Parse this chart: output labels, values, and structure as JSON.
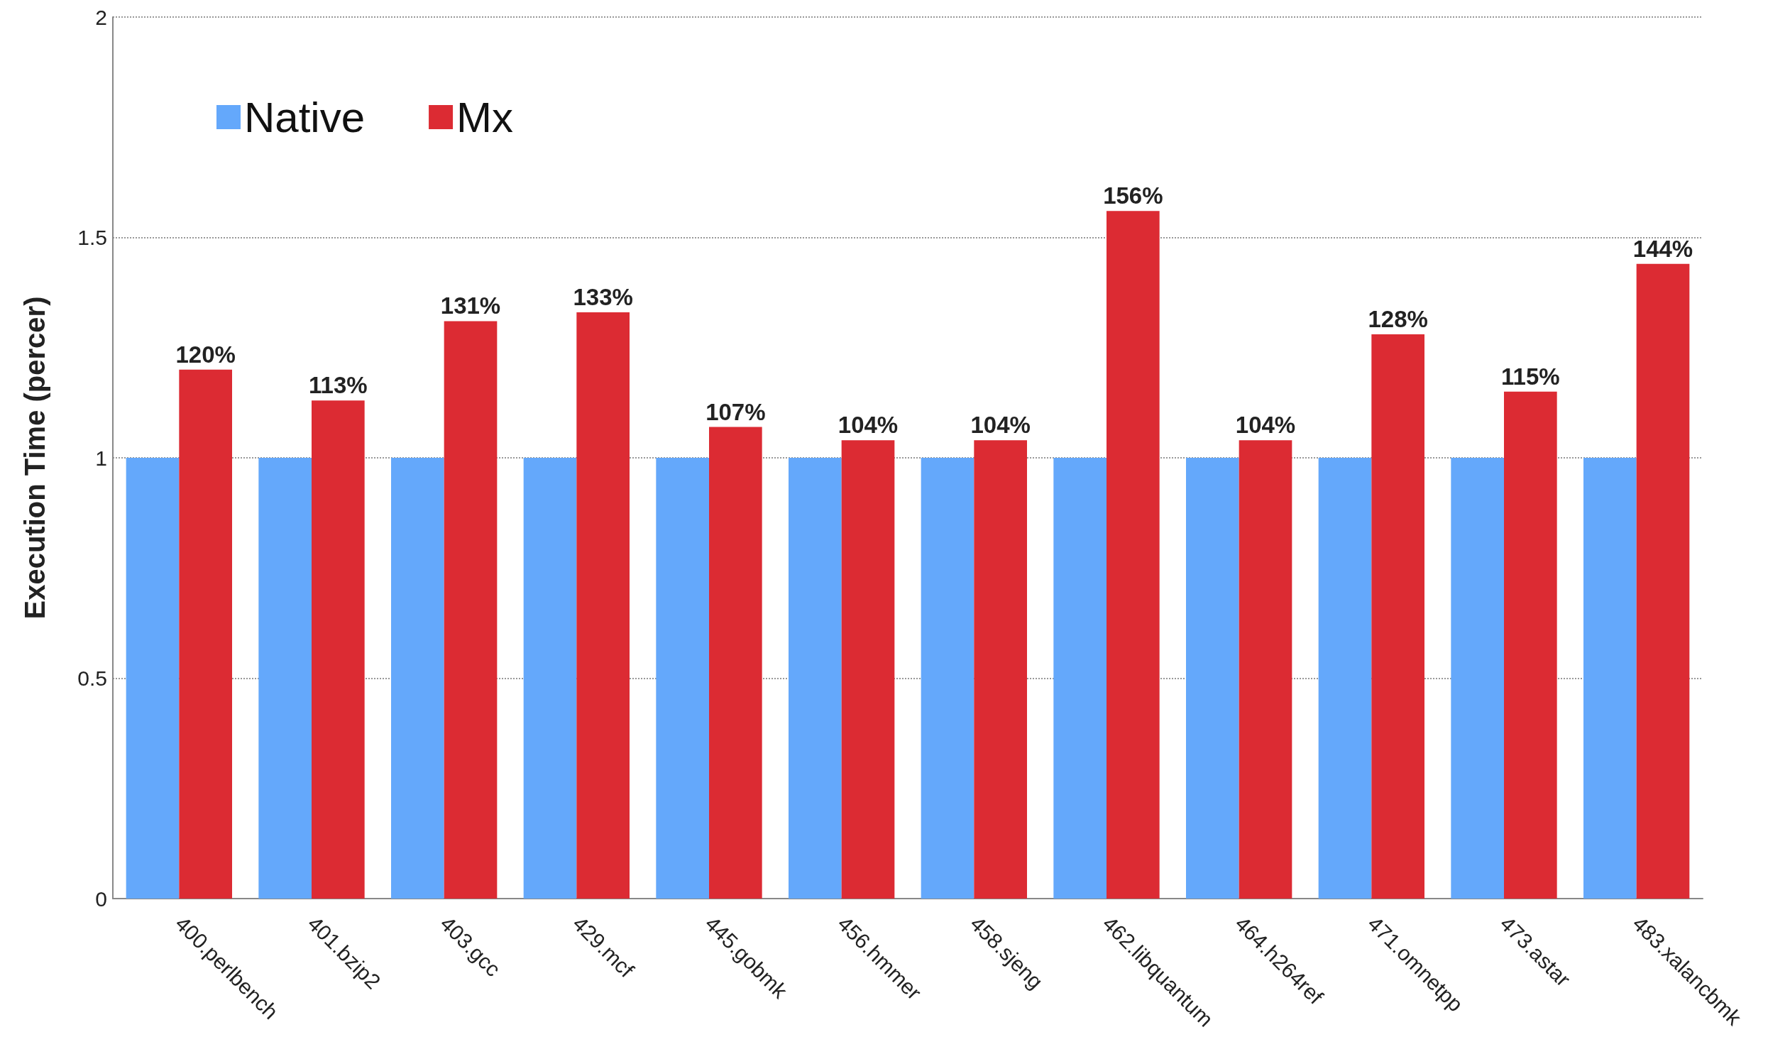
{
  "chart_data": {
    "type": "bar",
    "ylabel": "Execution Time (percer)",
    "categories": [
      "400.perlbench",
      "401.bzip2",
      "403.gcc",
      "429.mcf",
      "445.gobmk",
      "456.hmmer",
      "458.sjeng",
      "462.libquantum",
      "464.h264ref",
      "471.omnetpp",
      "473.astar",
      "483.xalancbmk"
    ],
    "series": [
      {
        "name": "Native",
        "color": "#64a8fb",
        "values": [
          1,
          1,
          1,
          1,
          1,
          1,
          1,
          1,
          1,
          1,
          1,
          1
        ]
      },
      {
        "name": "Mx",
        "color": "#dc2b33",
        "values": [
          1.2,
          1.13,
          1.31,
          1.33,
          1.07,
          1.04,
          1.04,
          1.56,
          1.04,
          1.28,
          1.15,
          1.44
        ],
        "value_labels": [
          "120%",
          "113%",
          "131%",
          "133%",
          "107%",
          "104%",
          "104%",
          "156%",
          "104%",
          "128%",
          "115%",
          "144%"
        ]
      }
    ],
    "ylim": [
      0,
      2
    ],
    "yticks": [
      0,
      0.5,
      1,
      1.5,
      2
    ],
    "grid": "y",
    "legend": "top left"
  }
}
